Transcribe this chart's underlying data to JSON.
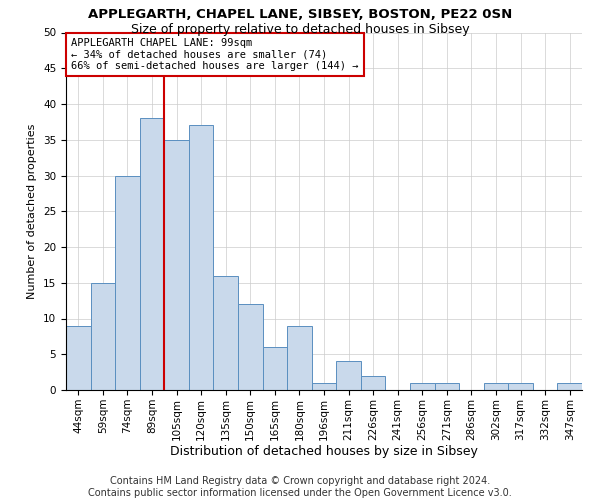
{
  "title1": "APPLEGARTH, CHAPEL LANE, SIBSEY, BOSTON, PE22 0SN",
  "title2": "Size of property relative to detached houses in Sibsey",
  "xlabel": "Distribution of detached houses by size in Sibsey",
  "ylabel": "Number of detached properties",
  "bar_labels": [
    "44sqm",
    "59sqm",
    "74sqm",
    "89sqm",
    "105sqm",
    "120sqm",
    "135sqm",
    "150sqm",
    "165sqm",
    "180sqm",
    "196sqm",
    "211sqm",
    "226sqm",
    "241sqm",
    "256sqm",
    "271sqm",
    "286sqm",
    "302sqm",
    "317sqm",
    "332sqm",
    "347sqm"
  ],
  "bar_values": [
    9,
    15,
    30,
    38,
    35,
    37,
    16,
    12,
    6,
    9,
    1,
    4,
    2,
    0,
    1,
    1,
    0,
    1,
    1,
    0,
    1
  ],
  "bar_color": "#c9d9eb",
  "bar_edge_color": "#5a8fc0",
  "vline_x_index": 3,
  "vline_color": "#cc0000",
  "annotation_text": "APPLEGARTH CHAPEL LANE: 99sqm\n← 34% of detached houses are smaller (74)\n66% of semi-detached houses are larger (144) →",
  "annotation_box_color": "#ffffff",
  "annotation_box_edge": "#cc0000",
  "ylim": [
    0,
    50
  ],
  "yticks": [
    0,
    5,
    10,
    15,
    20,
    25,
    30,
    35,
    40,
    45,
    50
  ],
  "grid_color": "#cccccc",
  "background_color": "#ffffff",
  "footer_line1": "Contains HM Land Registry data © Crown copyright and database right 2024.",
  "footer_line2": "Contains public sector information licensed under the Open Government Licence v3.0.",
  "title1_fontsize": 9.5,
  "title2_fontsize": 9,
  "xlabel_fontsize": 9,
  "ylabel_fontsize": 8,
  "tick_fontsize": 7.5,
  "annotation_fontsize": 7.5,
  "footer_fontsize": 7
}
